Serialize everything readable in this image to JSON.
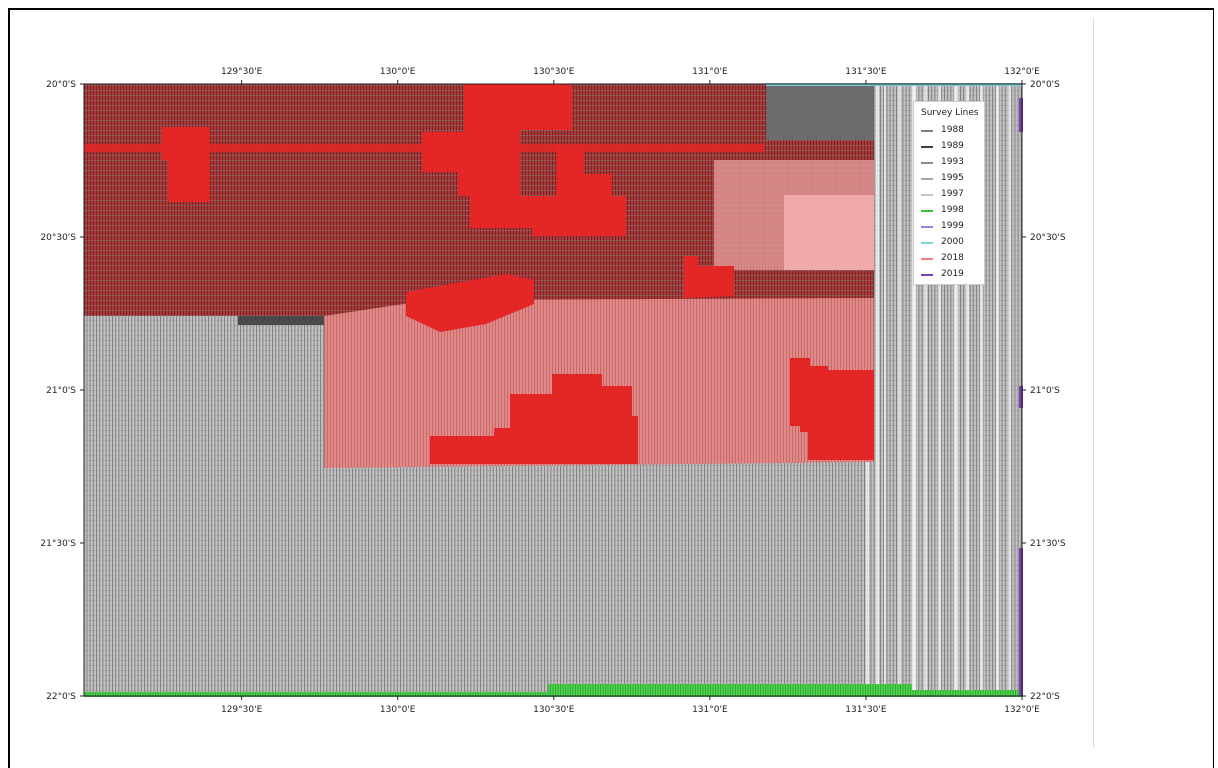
{
  "map": {
    "lon_ticks": [
      {
        "value": 129.5,
        "label": "129°30'E"
      },
      {
        "value": 130.0,
        "label": "130°0'E"
      },
      {
        "value": 130.5,
        "label": "130°30'E"
      },
      {
        "value": 131.0,
        "label": "131°0'E"
      },
      {
        "value": 131.5,
        "label": "131°30'E"
      },
      {
        "value": 132.0,
        "label": "132°0'E"
      }
    ],
    "lat_ticks": [
      {
        "value": -20.0,
        "label": "20°0'S"
      },
      {
        "value": -20.5,
        "label": "20°30'S"
      },
      {
        "value": -21.0,
        "label": "21°0'S"
      },
      {
        "value": -21.5,
        "label": "21°30'S"
      },
      {
        "value": -22.0,
        "label": "22°0'S"
      }
    ],
    "extent": {
      "lon_min": 128.995,
      "lon_max": 132.0,
      "lat_max": -20.0,
      "lat_min": -22.0
    }
  },
  "legend": {
    "title": "Survey Lines",
    "location": "top-right",
    "entries": [
      {
        "label": "1988",
        "color": "#7f7f7f"
      },
      {
        "label": "1989",
        "color": "#404040"
      },
      {
        "label": "1993",
        "color": "#8c8c8c"
      },
      {
        "label": "1995",
        "color": "#a6a6a6"
      },
      {
        "label": "1997",
        "color": "#c8c8c8"
      },
      {
        "label": "1998",
        "color": "#3fbf3f"
      },
      {
        "label": "1999",
        "color": "#8a8ae0"
      },
      {
        "label": "2000",
        "color": "#7fcfd6"
      },
      {
        "label": "2018",
        "color": "#f08080"
      },
      {
        "label": "2019",
        "color": "#7a3fb8"
      }
    ]
  },
  "colors": {
    "survey_grey": "#b8b8b8",
    "survey_dark_red": "#a23535",
    "survey_pink": "#e28888",
    "survey_red": "#e32222",
    "survey_dark": "#555555",
    "survey_green": "#3fcf3f",
    "survey_purple": "#7a3fb8",
    "survey_cyan": "#7fcfd6"
  }
}
